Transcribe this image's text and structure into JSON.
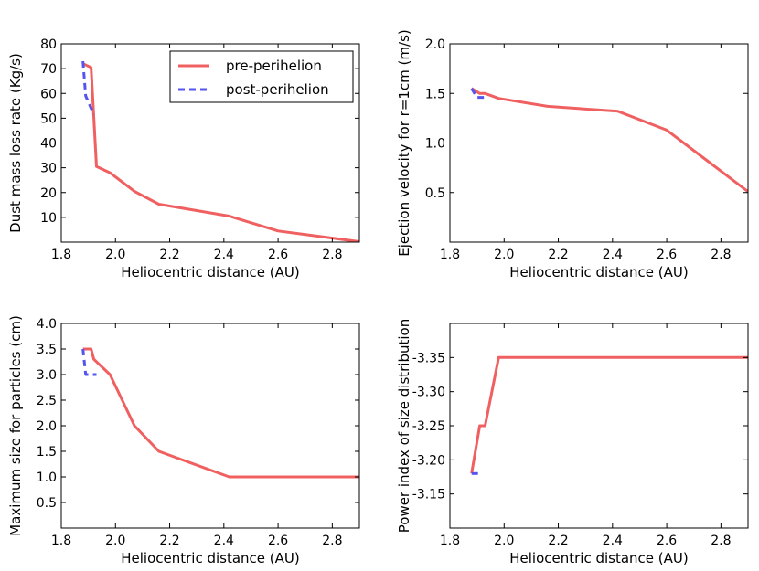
{
  "colors": {
    "pre": "#f06060",
    "post": "#5555ee"
  },
  "legend": {
    "pre_label": "pre-perihelion",
    "post_label": "post-perihelion",
    "placement": "top-right of first panel"
  },
  "chart_data": [
    {
      "type": "line",
      "xlabel": "Heliocentric distance (AU)",
      "ylabel": "Dust mass loss rate (Kg/s)",
      "xlim": [
        1.8,
        2.9
      ],
      "ylim": [
        0,
        80
      ],
      "xticks": [
        "1.8",
        "2.0",
        "2.2",
        "2.4",
        "2.6",
        "2.8"
      ],
      "yticks": [
        "10",
        "20",
        "30",
        "40",
        "50",
        "60",
        "70",
        "80"
      ],
      "series": [
        {
          "name": "pre-perihelion",
          "x": [
            1.88,
            1.91,
            1.93,
            1.98,
            2.07,
            2.16,
            2.42,
            2.6,
            2.9
          ],
          "y": [
            72,
            70.5,
            30.5,
            28,
            20.5,
            15.3,
            10.5,
            4.5,
            0.2
          ]
        },
        {
          "name": "post-perihelion",
          "x": [
            1.88,
            1.89,
            1.92
          ],
          "y": [
            73,
            59,
            51.5
          ]
        }
      ]
    },
    {
      "type": "line",
      "xlabel": "Heliocentric distance (AU)",
      "ylabel": "Ejection velocity for r=1cm (m/s)",
      "xlim": [
        1.8,
        2.9
      ],
      "ylim": [
        0.0,
        2.0
      ],
      "xticks": [
        "1.8",
        "2.0",
        "2.2",
        "2.4",
        "2.6",
        "2.8"
      ],
      "yticks": [
        "0.5",
        "1.0",
        "1.5",
        "2.0"
      ],
      "series": [
        {
          "name": "pre-perihelion",
          "x": [
            1.88,
            1.91,
            1.93,
            1.98,
            2.16,
            2.42,
            2.6,
            2.9
          ],
          "y": [
            1.55,
            1.5,
            1.5,
            1.45,
            1.37,
            1.32,
            1.13,
            0.51
          ]
        },
        {
          "name": "post-perihelion",
          "x": [
            1.88,
            1.9,
            1.93
          ],
          "y": [
            1.55,
            1.46,
            1.46
          ]
        }
      ]
    },
    {
      "type": "line",
      "xlabel": "Heliocentric distance (AU)",
      "ylabel": "Maximum size for particles (cm)",
      "xlim": [
        1.8,
        2.9
      ],
      "ylim": [
        0.0,
        4.0
      ],
      "xticks": [
        "1.8",
        "2.0",
        "2.2",
        "2.4",
        "2.6",
        "2.8"
      ],
      "yticks": [
        "0.5",
        "1.0",
        "1.5",
        "2.0",
        "2.5",
        "3.0",
        "3.5",
        "4.0"
      ],
      "series": [
        {
          "name": "pre-perihelion",
          "x": [
            1.88,
            1.91,
            1.92,
            1.98,
            2.07,
            2.16,
            2.42,
            2.9
          ],
          "y": [
            3.5,
            3.5,
            3.3,
            3.0,
            2.0,
            1.5,
            1.0,
            1.0
          ]
        },
        {
          "name": "post-perihelion",
          "x": [
            1.88,
            1.89,
            1.93
          ],
          "y": [
            3.5,
            3.0,
            3.0
          ]
        }
      ]
    },
    {
      "type": "line",
      "xlabel": "Heliocentric distance (AU)",
      "ylabel": "Power index of size distribution",
      "xlim": [
        1.8,
        2.9
      ],
      "ylim": [
        -3.1,
        -3.4
      ],
      "xticks": [
        "1.8",
        "2.0",
        "2.2",
        "2.4",
        "2.6",
        "2.8"
      ],
      "yticks": [
        "-3.15",
        "-3.20",
        "-3.25",
        "-3.30",
        "-3.35"
      ],
      "series": [
        {
          "name": "pre-perihelion",
          "x": [
            1.88,
            1.91,
            1.93,
            1.98,
            2.9
          ],
          "y": [
            -3.18,
            -3.25,
            -3.25,
            -3.35,
            -3.35
          ]
        },
        {
          "name": "post-perihelion",
          "x": [
            1.88,
            1.91
          ],
          "y": [
            -3.18,
            -3.18
          ]
        }
      ]
    }
  ]
}
